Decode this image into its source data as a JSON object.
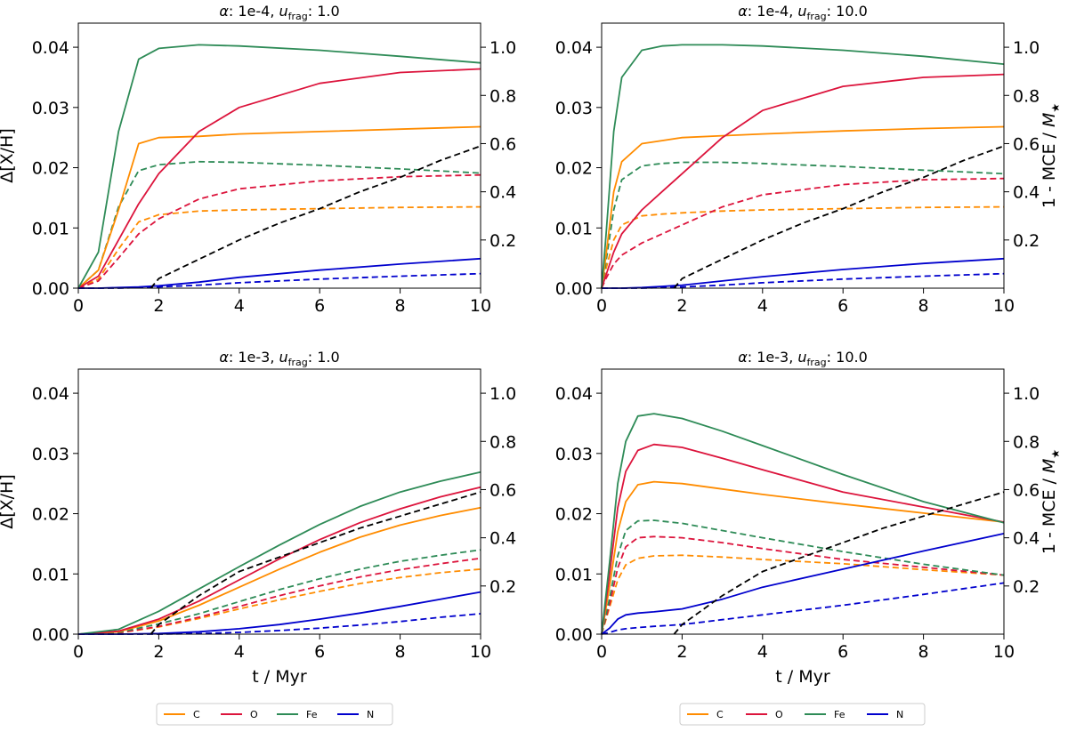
{
  "figure": {
    "legend_labels": [
      "C",
      "O",
      "Fe",
      "N"
    ],
    "colors": {
      "C": "#ff8c00",
      "O": "#dc143c",
      "Fe": "#2e8b57",
      "N": "#0000cd",
      "MCE": "#000000"
    }
  },
  "chart_data": [
    {
      "type": "line",
      "title": "α: 1e-4, u_frag: 1.0",
      "title_parts": {
        "alpha_sym": "α",
        "alpha_val": ": 1e-4, ",
        "u_sym": "u",
        "u_sub": "frag",
        "u_val": ": 1.0"
      },
      "xlabel": "",
      "ylabel": "Δ[X/H]",
      "y2label": "",
      "xlim": [
        0,
        10
      ],
      "ylim": [
        0,
        0.044
      ],
      "y2lim": [
        0,
        1.1
      ],
      "xticks": [
        "0",
        "2",
        "4",
        "6",
        "8",
        "10"
      ],
      "yticks": [
        "0.00",
        "0.01",
        "0.02",
        "0.03",
        "0.04"
      ],
      "y2ticks": [
        "0.2",
        "0.4",
        "0.6",
        "0.8",
        "1.0"
      ],
      "x": [
        0,
        0.5,
        1,
        1.5,
        2,
        3,
        4,
        6,
        8,
        10
      ],
      "series": [
        {
          "name": "C",
          "style": "solid",
          "values": [
            0,
            0.003,
            0.013,
            0.024,
            0.025,
            0.0252,
            0.0256,
            0.026,
            0.0264,
            0.0268
          ]
        },
        {
          "name": "O",
          "style": "solid",
          "values": [
            0,
            0.002,
            0.008,
            0.014,
            0.019,
            0.026,
            0.03,
            0.034,
            0.0358,
            0.0364
          ]
        },
        {
          "name": "Fe",
          "style": "solid",
          "values": [
            0,
            0.006,
            0.026,
            0.038,
            0.0398,
            0.0404,
            0.0402,
            0.0395,
            0.0385,
            0.0374
          ]
        },
        {
          "name": "N",
          "style": "solid",
          "values": [
            0,
            0,
            0.0001,
            0.0002,
            0.0004,
            0.001,
            0.0018,
            0.003,
            0.004,
            0.0049
          ]
        },
        {
          "name": "C",
          "style": "dashed",
          "values": [
            0,
            0.0015,
            0.0065,
            0.011,
            0.0122,
            0.0128,
            0.013,
            0.0132,
            0.0134,
            0.0135
          ]
        },
        {
          "name": "O",
          "style": "dashed",
          "values": [
            0,
            0.0012,
            0.005,
            0.009,
            0.0115,
            0.0148,
            0.0165,
            0.0178,
            0.0185,
            0.0188
          ]
        },
        {
          "name": "Fe",
          "style": "dashed",
          "values": [
            0,
            0.003,
            0.0135,
            0.0195,
            0.0205,
            0.021,
            0.0209,
            0.0204,
            0.0198,
            0.0191
          ]
        },
        {
          "name": "N",
          "style": "dashed",
          "values": [
            0,
            0,
            0,
            0.0001,
            0.0002,
            0.0005,
            0.0009,
            0.0015,
            0.002,
            0.0024
          ]
        }
      ],
      "mce": {
        "name": "1 - MCE / M★",
        "style": "dashed",
        "x": [
          1.8,
          2,
          3,
          4,
          5,
          6,
          7,
          8,
          9,
          10
        ],
        "values": [
          0,
          0.04,
          0.12,
          0.2,
          0.27,
          0.33,
          0.4,
          0.46,
          0.53,
          0.59
        ]
      }
    },
    {
      "type": "line",
      "title": "α: 1e-4, u_frag: 10.0",
      "title_parts": {
        "alpha_sym": "α",
        "alpha_val": ": 1e-4, ",
        "u_sym": "u",
        "u_sub": "frag",
        "u_val": ": 10.0"
      },
      "xlabel": "",
      "ylabel": "",
      "y2label": "1 - MCE / M★",
      "y2label_parts": {
        "main": "1 - MCE / ",
        "sym": "M",
        "sub": "★"
      },
      "xlim": [
        0,
        10
      ],
      "ylim": [
        0,
        0.044
      ],
      "y2lim": [
        0,
        1.1
      ],
      "xticks": [
        "0",
        "2",
        "4",
        "6",
        "8",
        "10"
      ],
      "yticks": [
        "0.00",
        "0.01",
        "0.02",
        "0.03",
        "0.04"
      ],
      "y2ticks": [
        "0.2",
        "0.4",
        "0.6",
        "0.8",
        "1.0"
      ],
      "x": [
        0,
        0.1,
        0.3,
        0.5,
        1,
        1.5,
        2,
        3,
        4,
        6,
        8,
        10
      ],
      "series": [
        {
          "name": "C",
          "style": "solid",
          "values": [
            0,
            0.005,
            0.016,
            0.021,
            0.024,
            0.0245,
            0.025,
            0.0253,
            0.0256,
            0.0261,
            0.0265,
            0.0268
          ]
        },
        {
          "name": "O",
          "style": "solid",
          "values": [
            0,
            0.002,
            0.006,
            0.009,
            0.013,
            0.016,
            0.019,
            0.025,
            0.0295,
            0.0335,
            0.035,
            0.0355
          ]
        },
        {
          "name": "Fe",
          "style": "solid",
          "values": [
            0,
            0.008,
            0.026,
            0.035,
            0.0395,
            0.0402,
            0.0404,
            0.0404,
            0.0402,
            0.0395,
            0.0385,
            0.0372
          ]
        },
        {
          "name": "N",
          "style": "solid",
          "values": [
            0,
            0,
            0,
            0,
            0.0001,
            0.0003,
            0.0005,
            0.0012,
            0.0019,
            0.0031,
            0.0041,
            0.0049
          ]
        },
        {
          "name": "C",
          "style": "dashed",
          "values": [
            0,
            0.003,
            0.008,
            0.0105,
            0.012,
            0.0123,
            0.0125,
            0.0128,
            0.013,
            0.0132,
            0.0134,
            0.0135
          ]
        },
        {
          "name": "O",
          "style": "dashed",
          "values": [
            0,
            0.0015,
            0.004,
            0.0055,
            0.0075,
            0.009,
            0.0105,
            0.0135,
            0.0155,
            0.0172,
            0.018,
            0.0182
          ]
        },
        {
          "name": "Fe",
          "style": "dashed",
          "values": [
            0,
            0.004,
            0.013,
            0.018,
            0.0203,
            0.0207,
            0.0209,
            0.0209,
            0.0207,
            0.0202,
            0.0196,
            0.019
          ]
        },
        {
          "name": "N",
          "style": "dashed",
          "values": [
            0,
            0,
            0,
            0,
            0,
            0.0001,
            0.0002,
            0.0005,
            0.0009,
            0.0015,
            0.002,
            0.0024
          ]
        }
      ],
      "mce": {
        "name": "1 - MCE / M★",
        "style": "dashed",
        "x": [
          1.8,
          2,
          3,
          4,
          5,
          6,
          7,
          8,
          9,
          10
        ],
        "values": [
          0,
          0.04,
          0.12,
          0.2,
          0.27,
          0.33,
          0.4,
          0.46,
          0.53,
          0.59
        ]
      }
    },
    {
      "type": "line",
      "title": "α: 1e-3, u_frag: 1.0",
      "title_parts": {
        "alpha_sym": "α",
        "alpha_val": ": 1e-3, ",
        "u_sym": "u",
        "u_sub": "frag",
        "u_val": ": 1.0"
      },
      "xlabel": "t / Myr",
      "ylabel": "Δ[X/H]",
      "y2label": "",
      "xlim": [
        0,
        10
      ],
      "ylim": [
        0,
        0.044
      ],
      "y2lim": [
        0,
        1.1
      ],
      "xticks": [
        "0",
        "2",
        "4",
        "6",
        "8",
        "10"
      ],
      "yticks": [
        "0.00",
        "0.01",
        "0.02",
        "0.03",
        "0.04"
      ],
      "y2ticks": [
        "0.2",
        "0.4",
        "0.6",
        "0.8",
        "1.0"
      ],
      "x": [
        0,
        1,
        2,
        3,
        4,
        5,
        6,
        7,
        8,
        9,
        10
      ],
      "series": [
        {
          "name": "C",
          "style": "solid",
          "values": [
            0,
            0.0004,
            0.0022,
            0.0048,
            0.0078,
            0.0108,
            0.0136,
            0.0161,
            0.0181,
            0.0197,
            0.021
          ]
        },
        {
          "name": "O",
          "style": "solid",
          "values": [
            0,
            0.0005,
            0.0025,
            0.0055,
            0.009,
            0.0125,
            0.0157,
            0.0185,
            0.0208,
            0.0228,
            0.0244
          ]
        },
        {
          "name": "Fe",
          "style": "solid",
          "values": [
            0,
            0.0008,
            0.0038,
            0.0075,
            0.0112,
            0.0148,
            0.0182,
            0.0212,
            0.0236,
            0.0254,
            0.0269
          ]
        },
        {
          "name": "N",
          "style": "solid",
          "values": [
            0,
            0,
            0.0001,
            0.0004,
            0.0009,
            0.0016,
            0.0025,
            0.0035,
            0.0046,
            0.0058,
            0.007
          ]
        },
        {
          "name": "C",
          "style": "dashed",
          "values": [
            0,
            0.0002,
            0.0012,
            0.0026,
            0.0042,
            0.0057,
            0.0071,
            0.0084,
            0.0094,
            0.0102,
            0.0108
          ]
        },
        {
          "name": "O",
          "style": "dashed",
          "values": [
            0,
            0.0002,
            0.0013,
            0.0028,
            0.0046,
            0.0064,
            0.008,
            0.0095,
            0.0107,
            0.0117,
            0.0126
          ]
        },
        {
          "name": "Fe",
          "style": "dashed",
          "values": [
            0,
            0.0003,
            0.0017,
            0.0034,
            0.0054,
            0.0074,
            0.0092,
            0.0108,
            0.0121,
            0.0131,
            0.014
          ]
        },
        {
          "name": "N",
          "style": "dashed",
          "values": [
            0,
            0,
            0,
            0.0001,
            0.0003,
            0.0006,
            0.001,
            0.0015,
            0.0021,
            0.0028,
            0.0034
          ]
        }
      ],
      "mce": {
        "name": "1 - MCE / M★",
        "style": "dashed",
        "x": [
          1.8,
          2,
          3,
          4,
          5,
          6,
          7,
          8,
          9,
          10
        ],
        "values": [
          0,
          0.04,
          0.16,
          0.26,
          0.32,
          0.38,
          0.44,
          0.49,
          0.54,
          0.59
        ]
      }
    },
    {
      "type": "line",
      "title": "α: 1e-3, u_frag: 10.0",
      "title_parts": {
        "alpha_sym": "α",
        "alpha_val": ": 1e-3, ",
        "u_sym": "u",
        "u_sub": "frag",
        "u_val": ": 10.0"
      },
      "xlabel": "t / Myr",
      "ylabel": "",
      "y2label": "1 - MCE / M★",
      "y2label_parts": {
        "main": "1 - MCE / ",
        "sym": "M",
        "sub": "★"
      },
      "xlim": [
        0,
        10
      ],
      "ylim": [
        0,
        0.044
      ],
      "y2lim": [
        0,
        1.1
      ],
      "xticks": [
        "0",
        "2",
        "4",
        "6",
        "8",
        "10"
      ],
      "yticks": [
        "0.00",
        "0.01",
        "0.02",
        "0.03",
        "0.04"
      ],
      "y2ticks": [
        "0.2",
        "0.4",
        "0.6",
        "0.8",
        "1.0"
      ],
      "x": [
        0,
        0.2,
        0.4,
        0.6,
        0.9,
        1.3,
        2,
        3,
        4,
        6,
        8,
        10
      ],
      "series": [
        {
          "name": "C",
          "style": "solid",
          "values": [
            0,
            0.008,
            0.017,
            0.022,
            0.0248,
            0.0253,
            0.025,
            0.0241,
            0.0232,
            0.0216,
            0.0201,
            0.0186
          ]
        },
        {
          "name": "O",
          "style": "solid",
          "values": [
            0,
            0.01,
            0.021,
            0.027,
            0.0305,
            0.0315,
            0.031,
            0.0292,
            0.0273,
            0.0236,
            0.0211,
            0.0186
          ]
        },
        {
          "name": "Fe",
          "style": "solid",
          "values": [
            0,
            0.012,
            0.025,
            0.032,
            0.0362,
            0.0366,
            0.0358,
            0.0337,
            0.0313,
            0.0265,
            0.022,
            0.0185
          ]
        },
        {
          "name": "N",
          "style": "solid",
          "values": [
            0,
            0.001,
            0.0025,
            0.0032,
            0.0035,
            0.0037,
            0.0042,
            0.0058,
            0.0078,
            0.0108,
            0.0138,
            0.0167
          ]
        },
        {
          "name": "C",
          "style": "dashed",
          "values": [
            0,
            0.0045,
            0.009,
            0.0115,
            0.0126,
            0.013,
            0.0131,
            0.0128,
            0.0124,
            0.0117,
            0.0107,
            0.0098
          ]
        },
        {
          "name": "O",
          "style": "dashed",
          "values": [
            0,
            0.005,
            0.011,
            0.0145,
            0.016,
            0.0162,
            0.016,
            0.0152,
            0.0142,
            0.0124,
            0.0111,
            0.0098
          ]
        },
        {
          "name": "Fe",
          "style": "dashed",
          "values": [
            0,
            0.006,
            0.013,
            0.0172,
            0.0188,
            0.0189,
            0.0184,
            0.0172,
            0.016,
            0.0137,
            0.0116,
            0.0098
          ]
        },
        {
          "name": "N",
          "style": "dashed",
          "values": [
            0,
            0.0003,
            0.0007,
            0.0009,
            0.0011,
            0.0013,
            0.0016,
            0.0024,
            0.0032,
            0.0048,
            0.0066,
            0.0085
          ]
        }
      ],
      "mce": {
        "name": "1 - MCE / M★",
        "style": "dashed",
        "x": [
          1.8,
          2,
          3,
          4,
          5,
          6,
          7,
          8,
          9,
          10
        ],
        "values": [
          0,
          0.04,
          0.16,
          0.26,
          0.32,
          0.38,
          0.44,
          0.49,
          0.54,
          0.59
        ]
      }
    }
  ]
}
